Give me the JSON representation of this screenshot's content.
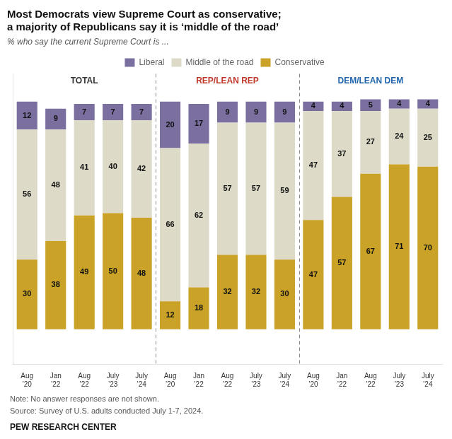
{
  "chart_data": {
    "type": "bar",
    "stacked": true,
    "title": [
      "Most Democrats view Supreme Court as conservative;",
      "a majority of Republicans say it is ‘middle of the road’"
    ],
    "subtitle": "% who say the current Supreme Court is ...",
    "categories": [
      "Aug\n’20",
      "Jan\n’22",
      "Aug\n’22",
      "July\n’23",
      "July\n’24",
      "Aug\n’20",
      "Jan\n’22",
      "Aug\n’22",
      "July\n’23",
      "July\n’24",
      "Aug\n’20",
      "Jan\n’22",
      "Aug\n’22",
      "July\n’23",
      "July\n’24"
    ],
    "series": [
      {
        "name": "Liberal",
        "color": "#7b6fa0",
        "values": [
          12,
          9,
          7,
          7,
          7,
          20,
          17,
          9,
          9,
          9,
          4,
          4,
          5,
          4,
          4
        ]
      },
      {
        "name": "Middle of the road",
        "color": "#dddbc8",
        "values": [
          56,
          48,
          41,
          40,
          42,
          66,
          62,
          57,
          57,
          59,
          47,
          37,
          27,
          24,
          25
        ]
      },
      {
        "name": "Conservative",
        "color": "#c9a227",
        "values": [
          30,
          38,
          49,
          50,
          48,
          12,
          18,
          32,
          32,
          30,
          47,
          57,
          67,
          71,
          70
        ]
      }
    ],
    "annotations": [
      {
        "text": "TOTAL",
        "color": "#333333"
      },
      {
        "text": "REP/LEAN REP",
        "color": "#c0392b"
      },
      {
        "text": "DEM/LEAN DEM",
        "color": "#2166ac"
      }
    ],
    "footnotes": [
      "Note: No answer responses are not shown.",
      "Source: Survey of U.S. adults conducted July 1-7, 2024.",
      "PEW RESEARCH CENTER"
    ],
    "ylim": [
      -15,
      110
    ],
    "data_labels": true,
    "tick_labels": "x",
    "grid": false,
    "legend": "top"
  }
}
